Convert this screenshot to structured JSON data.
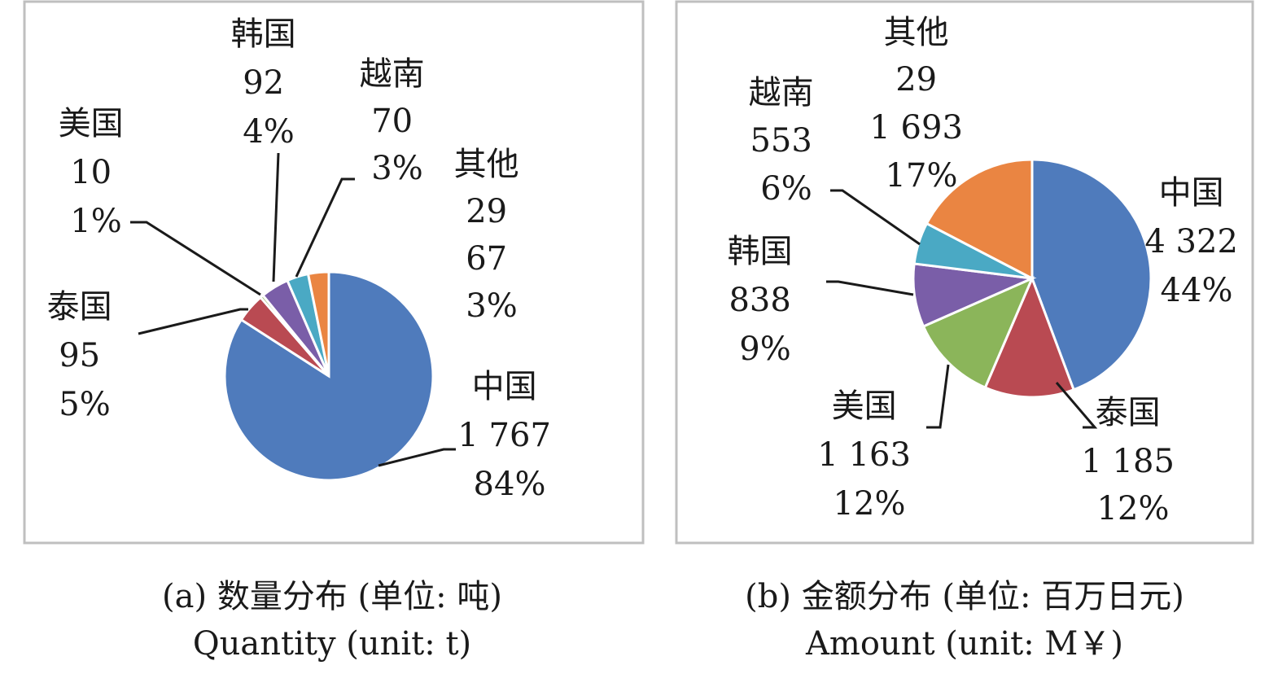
{
  "colors": {
    "china": "#4f7bbc",
    "thailand": "#b94a52",
    "usa": "#8bb55a",
    "korea": "#7a5ea8",
    "vietnam": "#4aa9c4",
    "others": "#ea8542"
  },
  "chart_data": [
    {
      "type": "pie",
      "caption_cn": "(a) 数量分布  (单位: 吨)",
      "caption_en": "Quantity (unit: t)",
      "slices": [
        {
          "name": "中国",
          "value_label": "1 767",
          "value": 1767,
          "percent": "84%",
          "color_key": "china"
        },
        {
          "name": "泰国",
          "value_label": "95",
          "value": 95,
          "percent": "5%",
          "color_key": "thailand"
        },
        {
          "name": "美国",
          "value_label": "10",
          "value": 10,
          "percent": "1%",
          "color_key": "usa"
        },
        {
          "name": "韩国",
          "value_label": "92",
          "value": 92,
          "percent": "4%",
          "color_key": "korea"
        },
        {
          "name": "越南",
          "value_label": "70",
          "value": 70,
          "percent": "3%",
          "color_key": "vietnam"
        },
        {
          "name": "其他",
          "sub": "29",
          "value_label": "67",
          "value": 67,
          "percent": "3%",
          "color_key": "others"
        }
      ]
    },
    {
      "type": "pie",
      "caption_cn": "(b) 金额分布 (单位: 百万日元)",
      "caption_en": "Amount (unit: M￥)",
      "slices": [
        {
          "name": "中国",
          "value_label": "4 322",
          "value": 4322,
          "percent": "44%",
          "color_key": "china"
        },
        {
          "name": "泰国",
          "value_label": "1 185",
          "value": 1185,
          "percent": "12%",
          "color_key": "thailand"
        },
        {
          "name": "美国",
          "value_label": "1 163",
          "value": 1163,
          "percent": "12%",
          "color_key": "usa"
        },
        {
          "name": "韩国",
          "value_label": "838",
          "value": 838,
          "percent": "9%",
          "color_key": "korea"
        },
        {
          "name": "越南",
          "value_label": "553",
          "value": 553,
          "percent": "6%",
          "color_key": "vietnam"
        },
        {
          "name": "其他",
          "sub": "29",
          "value_label": "1 693",
          "value": 1693,
          "percent": "17%",
          "color_key": "others"
        }
      ]
    }
  ]
}
